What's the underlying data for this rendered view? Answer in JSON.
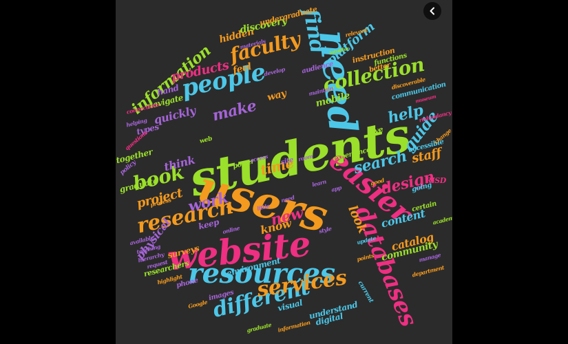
{
  "palette": {
    "green": "#9be02a",
    "orange": "#f49a1e",
    "pink": "#ee2f82",
    "cyan": "#4cc7e8",
    "purple": "#a564d8",
    "background": "#2b2b2b"
  },
  "controls": {
    "back_icon": "chevron-left-icon"
  },
  "words": [
    {
      "text": "students",
      "color": "green"
    },
    {
      "text": "users",
      "color": "orange"
    },
    {
      "text": "website",
      "color": "pink"
    },
    {
      "text": "resources",
      "color": "cyan"
    },
    {
      "text": "easier",
      "color": "pink"
    },
    {
      "text": "need",
      "color": "cyan"
    },
    {
      "text": "people",
      "color": "cyan"
    },
    {
      "text": "research",
      "color": "orange"
    },
    {
      "text": "databases",
      "color": "pink"
    },
    {
      "text": "collection",
      "color": "green"
    },
    {
      "text": "different",
      "color": "cyan"
    },
    {
      "text": "services",
      "color": "orange"
    },
    {
      "text": "faculty",
      "color": "orange"
    },
    {
      "text": "book",
      "color": "green"
    },
    {
      "text": "find",
      "color": "cyan"
    },
    {
      "text": "information",
      "color": "green"
    },
    {
      "text": "make",
      "color": "purple"
    },
    {
      "text": "help",
      "color": "cyan"
    },
    {
      "text": "search",
      "color": "cyan"
    },
    {
      "text": "time",
      "color": "orange"
    },
    {
      "text": "work",
      "color": "purple"
    },
    {
      "text": "design",
      "color": "pink"
    },
    {
      "text": "guide",
      "color": "cyan"
    },
    {
      "text": "staff",
      "color": "orange"
    },
    {
      "text": "products",
      "color": "pink"
    },
    {
      "text": "new",
      "color": "pink"
    },
    {
      "text": "content",
      "color": "cyan"
    },
    {
      "text": "catalog",
      "color": "orange"
    },
    {
      "text": "community",
      "color": "green"
    },
    {
      "text": "physical",
      "color": "purple"
    },
    {
      "text": "project",
      "color": "orange"
    },
    {
      "text": "know",
      "color": "orange"
    },
    {
      "text": "look",
      "color": "orange"
    },
    {
      "text": "think",
      "color": "purple"
    },
    {
      "text": "quickly",
      "color": "purple"
    },
    {
      "text": "platform",
      "color": "cyan"
    },
    {
      "text": "hidden",
      "color": "orange"
    },
    {
      "text": "discovery",
      "color": "green"
    },
    {
      "text": "feel",
      "color": "orange"
    },
    {
      "text": "way",
      "color": "orange"
    },
    {
      "text": "mobile",
      "color": "green"
    },
    {
      "text": "hand",
      "color": "purple"
    },
    {
      "text": "navigate",
      "color": "green"
    },
    {
      "text": "types",
      "color": "purple"
    },
    {
      "text": "together",
      "color": "green"
    },
    {
      "text": "graduate",
      "color": "green"
    },
    {
      "text": "keep",
      "color": "purple"
    },
    {
      "text": "surveys",
      "color": "orange"
    },
    {
      "text": "environment",
      "color": "cyan"
    },
    {
      "text": "visual",
      "color": "cyan"
    },
    {
      "text": "understand",
      "color": "cyan"
    },
    {
      "text": "digital",
      "color": "cyan"
    },
    {
      "text": "researchers",
      "color": "green"
    },
    {
      "text": "phone",
      "color": "purple"
    },
    {
      "text": "images",
      "color": "purple"
    },
    {
      "text": "undergraduate",
      "color": "orange"
    },
    {
      "text": "instruction",
      "color": "orange"
    },
    {
      "text": "functions",
      "color": "green"
    },
    {
      "text": "communication",
      "color": "cyan"
    },
    {
      "text": "accessible",
      "color": "cyan"
    },
    {
      "text": "give",
      "color": "green"
    },
    {
      "text": "experience",
      "color": "green"
    },
    {
      "text": "going",
      "color": "cyan"
    },
    {
      "text": "certain",
      "color": "green"
    },
    {
      "text": "RISD",
      "color": "pink"
    },
    {
      "text": "audience",
      "color": "purple"
    },
    {
      "text": "better",
      "color": "orange"
    },
    {
      "text": "site",
      "color": "purple"
    },
    {
      "text": "power",
      "color": "green"
    },
    {
      "text": "web",
      "color": "green"
    },
    {
      "text": "policy",
      "color": "purple"
    },
    {
      "text": "materials",
      "color": "purple"
    },
    {
      "text": "develop",
      "color": "purple"
    },
    {
      "text": "maintain",
      "color": "purple"
    },
    {
      "text": "connections",
      "color": "pink"
    },
    {
      "text": "helping",
      "color": "purple"
    },
    {
      "text": "questions",
      "color": "pink"
    },
    {
      "text": "process",
      "color": "orange"
    },
    {
      "text": "available",
      "color": "purple"
    },
    {
      "text": "teaching",
      "color": "purple"
    },
    {
      "text": "hierarchy",
      "color": "purple"
    },
    {
      "text": "request",
      "color": "purple"
    },
    {
      "text": "highlight",
      "color": "orange"
    },
    {
      "text": "Google",
      "color": "orange"
    },
    {
      "text": "graduate",
      "color": "green"
    },
    {
      "text": "information",
      "color": "orange"
    },
    {
      "text": "department",
      "color": "orange"
    },
    {
      "text": "manage",
      "color": "purple"
    },
    {
      "text": "academic",
      "color": "green"
    },
    {
      "text": "change",
      "color": "orange"
    },
    {
      "text": "redundancy",
      "color": "pink"
    },
    {
      "text": "discoverable",
      "color": "orange"
    },
    {
      "text": "relevant",
      "color": "orange"
    },
    {
      "text": "points",
      "color": "orange"
    },
    {
      "text": "current",
      "color": "cyan"
    },
    {
      "text": "style",
      "color": "purple"
    },
    {
      "text": "update",
      "color": "cyan"
    },
    {
      "text": "room",
      "color": "purple"
    },
    {
      "text": "access",
      "color": "purple"
    },
    {
      "text": "app",
      "color": "purple"
    },
    {
      "text": "online",
      "color": "purple"
    },
    {
      "text": "good",
      "color": "orange"
    },
    {
      "text": "learn",
      "color": "purple"
    },
    {
      "text": "little",
      "color": "purple"
    },
    {
      "text": "need",
      "color": "purple"
    },
    {
      "text": "museum",
      "color": "pink"
    },
    {
      "text": "intuitive",
      "color": "green"
    }
  ]
}
